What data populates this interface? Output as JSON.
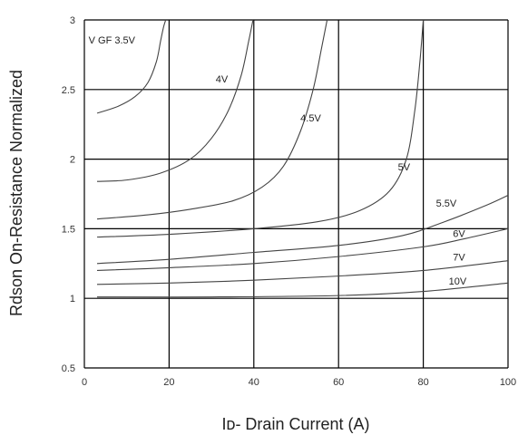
{
  "chart_data": {
    "type": "line",
    "xlabel": "Iᴅ- Drain Current (A)",
    "ylabel": "Rdson On-Resistance Normalized",
    "xlim": [
      0,
      100
    ],
    "ylim": [
      0.5,
      3
    ],
    "xticks": [
      "0",
      "20",
      "40",
      "60",
      "80",
      "100"
    ],
    "yticks": [
      "0.5",
      "1",
      "1.5",
      "2",
      "2.5",
      "3"
    ],
    "xtick_values": [
      0,
      20,
      40,
      60,
      80,
      100
    ],
    "ytick_values": [
      0.5,
      1,
      1.5,
      2,
      2.5,
      3
    ],
    "grid": true,
    "series": [
      {
        "name": "V GF 3.5V",
        "label_at": [
          1,
          2.83
        ],
        "x": [
          3,
          8,
          12,
          15,
          17,
          18,
          18.7,
          19.2
        ],
        "y": [
          2.33,
          2.38,
          2.45,
          2.55,
          2.7,
          2.85,
          2.95,
          3.0
        ]
      },
      {
        "name": "4V",
        "label_at": [
          31,
          2.55
        ],
        "x": [
          3,
          10,
          18,
          25,
          30,
          34,
          37,
          38.8,
          39.8
        ],
        "y": [
          1.84,
          1.85,
          1.9,
          2.0,
          2.15,
          2.35,
          2.6,
          2.85,
          3.0
        ]
      },
      {
        "name": "4.5V",
        "label_at": [
          51,
          2.27
        ],
        "x": [
          3,
          15,
          25,
          35,
          42,
          47,
          51,
          54,
          56,
          57.3
        ],
        "y": [
          1.57,
          1.6,
          1.64,
          1.7,
          1.8,
          1.95,
          2.2,
          2.5,
          2.8,
          3.0
        ]
      },
      {
        "name": "5V",
        "label_at": [
          74,
          1.92
        ],
        "x": [
          3,
          20,
          40,
          55,
          65,
          72,
          76,
          78,
          79.2,
          80
        ],
        "y": [
          1.44,
          1.46,
          1.5,
          1.55,
          1.63,
          1.77,
          2.0,
          2.35,
          2.7,
          3.0
        ]
      },
      {
        "name": "5.5V",
        "label_at": [
          83,
          1.66
        ],
        "x": [
          3,
          20,
          40,
          60,
          75,
          85,
          95,
          100
        ],
        "y": [
          1.25,
          1.28,
          1.33,
          1.38,
          1.45,
          1.55,
          1.67,
          1.74
        ]
      },
      {
        "name": "6V",
        "label_at": [
          87,
          1.44
        ],
        "x": [
          3,
          20,
          40,
          60,
          80,
          90,
          100
        ],
        "y": [
          1.2,
          1.22,
          1.25,
          1.3,
          1.37,
          1.43,
          1.5
        ]
      },
      {
        "name": "7V",
        "label_at": [
          87,
          1.27
        ],
        "x": [
          3,
          20,
          40,
          60,
          80,
          100
        ],
        "y": [
          1.1,
          1.11,
          1.13,
          1.16,
          1.2,
          1.27
        ]
      },
      {
        "name": "10V",
        "label_at": [
          86,
          1.1
        ],
        "x": [
          3,
          30,
          60,
          80,
          100
        ],
        "y": [
          1.01,
          1.01,
          1.02,
          1.05,
          1.11
        ]
      }
    ]
  }
}
